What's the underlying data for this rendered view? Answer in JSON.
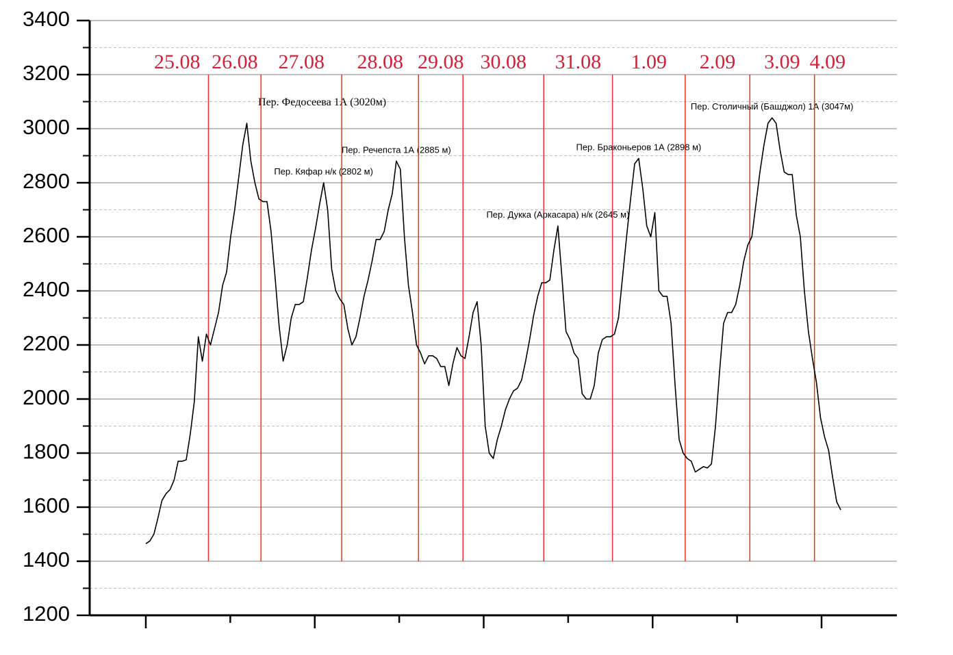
{
  "chart_data": {
    "type": "line",
    "ylim": [
      1200,
      3400
    ],
    "yticks": [
      1200,
      1400,
      1600,
      1800,
      2000,
      2200,
      2400,
      2600,
      2800,
      3000,
      3200,
      3400
    ],
    "yminorticks": [
      1300,
      1500,
      1700,
      1900,
      2100,
      2300,
      2500,
      2700,
      2900,
      3100,
      3300
    ],
    "grid": true,
    "color": "#000000",
    "day_line_color": "#e8302a",
    "days": [
      {
        "date": "25.08",
        "values": [
          1465,
          1475,
          1500,
          1560,
          1625,
          1650,
          1665,
          1700,
          1770,
          1770,
          1775,
          1870,
          1990,
          2230,
          2140,
          2240
        ]
      },
      {
        "date": "26.08",
        "values": [
          2200,
          2260,
          2320,
          2420,
          2470,
          2600,
          2700,
          2820,
          2940,
          3020,
          2880,
          2800,
          2740
        ],
        "annotation": "Пер. Федосеева 1А (3020м)",
        "annotation_color": "#8b1a1a"
      },
      {
        "date": "27.08",
        "values": [
          2730,
          2730,
          2620,
          2450,
          2270,
          2140,
          2200,
          2300,
          2350,
          2350,
          2360,
          2450,
          2550,
          2630,
          2720,
          2800,
          2700,
          2480,
          2400,
          2370
        ],
        "annotation": "Пер. Кяфар н/к (2802 м)"
      },
      {
        "date": "28.08",
        "values": [
          2350,
          2260,
          2200,
          2230,
          2300,
          2380,
          2440,
          2510,
          2590,
          2590,
          2620,
          2700,
          2760,
          2880,
          2850,
          2600,
          2420,
          2320,
          2200
        ],
        "annotation": "Пер. Речепста 1А (2885 м)"
      },
      {
        "date": "29.08",
        "values": [
          2170,
          2130,
          2160,
          2160,
          2150,
          2120,
          2120,
          2050,
          2130,
          2190,
          2160
        ]
      },
      {
        "date": "30.08",
        "values": [
          2150,
          2230,
          2320,
          2360,
          2200,
          1900,
          1800,
          1780,
          1850,
          1900,
          1960,
          2000,
          2030,
          2040,
          2070,
          2140,
          2220,
          2310,
          2380,
          2430
        ]
      },
      {
        "date": "31.08",
        "values": [
          2430,
          2440,
          2550,
          2640,
          2450,
          2250,
          2220,
          2170,
          2150,
          2020,
          2000,
          2000,
          2050,
          2170,
          2220,
          2230,
          2230
        ],
        "annotation": "Пер. Дукка (Аркасара) н/к (2645 м)"
      },
      {
        "date": "1.09",
        "values": [
          2240,
          2300,
          2450,
          2600,
          2740,
          2870,
          2890,
          2780,
          2640,
          2600,
          2690,
          2400,
          2380,
          2380,
          2280,
          2050,
          1850,
          1800
        ],
        "annotation": "Пер. Браконьеров 1А (2898 м)"
      },
      {
        "date": "2.09",
        "values": [
          1780,
          1770,
          1730,
          1740,
          1750,
          1745,
          1760,
          1900,
          2100,
          2280,
          2320,
          2320,
          2350,
          2420,
          2510,
          2570
        ]
      },
      {
        "date": "3.09",
        "values": [
          2600,
          2720,
          2840,
          2940,
          3020,
          3040,
          3020,
          2920,
          2840,
          2830,
          2830,
          2680,
          2600,
          2400,
          2250,
          2150
        ],
        "annotation": "Пер. Столичный (Башджол) 1А (3047м)"
      },
      {
        "date": "4.09",
        "values": [
          2060,
          1930,
          1860,
          1810,
          1710,
          1620,
          1590
        ]
      }
    ]
  }
}
